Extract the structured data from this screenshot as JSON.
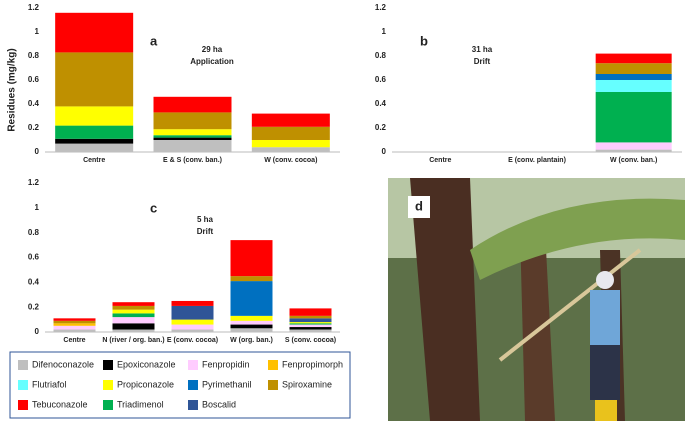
{
  "chart_data": [
    {
      "type": "bar",
      "stacked": true,
      "letter": "a",
      "annotations": [
        "29 ha",
        "Application"
      ],
      "ylabel": "Residues (mg/kg)",
      "categories": [
        "Centre",
        "E & S (conv. ban.)",
        "W (conv. cocoa)"
      ],
      "ylim": [
        0,
        1.2
      ],
      "yticks": [
        0,
        0.2,
        0.4,
        0.6,
        0.8,
        1,
        1.2
      ],
      "series": [
        {
          "name": "Difenoconazole",
          "color": "#bfbfbf",
          "values": [
            0.07,
            0.1,
            0.04
          ]
        },
        {
          "name": "Epoxiconazole",
          "color": "#000000",
          "values": [
            0.04,
            0.02,
            0
          ]
        },
        {
          "name": "Fenpropidin",
          "color": "#ffccff",
          "values": [
            0,
            0,
            0
          ]
        },
        {
          "name": "Fenpropimorph",
          "color": "#ffc000",
          "values": [
            0,
            0,
            0
          ]
        },
        {
          "name": "Triadimenol",
          "color": "#00b050",
          "values": [
            0.11,
            0.02,
            0
          ]
        },
        {
          "name": "Flutriafol",
          "color": "#66ffff",
          "values": [
            0,
            0,
            0
          ]
        },
        {
          "name": "Propiconazole",
          "color": "#ffff00",
          "values": [
            0.16,
            0.05,
            0.06
          ]
        },
        {
          "name": "Pyrimethanil",
          "color": "#0070c0",
          "values": [
            0,
            0,
            0
          ]
        },
        {
          "name": "Boscalid",
          "color": "#2f5597",
          "values": [
            0,
            0,
            0
          ]
        },
        {
          "name": "Spiroxamine",
          "color": "#bf9000",
          "values": [
            0.45,
            0.14,
            0.11
          ]
        },
        {
          "name": "Tebuconazole",
          "color": "#ff0000",
          "values": [
            0.33,
            0.13,
            0.11
          ]
        }
      ]
    },
    {
      "type": "bar",
      "stacked": true,
      "letter": "b",
      "annotations": [
        "31 ha",
        "Drift"
      ],
      "categories": [
        "Centre",
        "E (conv. plantain)",
        "W (conv. ban.)"
      ],
      "ylim": [
        0,
        1.2
      ],
      "yticks": [
        0,
        0.2,
        0.4,
        0.6,
        0.8,
        1,
        1.2
      ],
      "series": [
        {
          "values": [
            0,
            0,
            0.02
          ]
        },
        {
          "values": [
            0,
            0,
            0
          ]
        },
        {
          "values": [
            0,
            0,
            0.06
          ]
        },
        {
          "values": [
            0,
            0,
            0
          ]
        },
        {
          "values": [
            0,
            0,
            0.42
          ]
        },
        {
          "values": [
            0,
            0,
            0.1
          ]
        },
        {
          "values": [
            0,
            0,
            0
          ]
        },
        {
          "values": [
            0,
            0,
            0.05
          ]
        },
        {
          "values": [
            0,
            0,
            0
          ]
        },
        {
          "values": [
            0,
            0,
            0.09
          ]
        },
        {
          "values": [
            0,
            0,
            0.08
          ]
        }
      ]
    },
    {
      "type": "bar",
      "stacked": true,
      "letter": "c",
      "annotations": [
        "5 ha",
        "Drift"
      ],
      "categories": [
        "Centre",
        "N (river / org. ban.)",
        "E (conv. cocoa)",
        "W (org. ban.)",
        "S (conv. cocoa)"
      ],
      "ylim": [
        0,
        1.2
      ],
      "yticks": [
        0,
        0.2,
        0.4,
        0.6,
        0.8,
        1,
        1.2
      ],
      "series": [
        {
          "values": [
            0.02,
            0.02,
            0.02,
            0.03,
            0.02
          ]
        },
        {
          "values": [
            0,
            0.05,
            0,
            0.03,
            0.02
          ]
        },
        {
          "values": [
            0.03,
            0.05,
            0.04,
            0.03,
            0.02
          ]
        },
        {
          "values": [
            0.02,
            0,
            0,
            0,
            0
          ]
        },
        {
          "values": [
            0,
            0.03,
            0,
            0,
            0.01
          ]
        },
        {
          "values": [
            0,
            0,
            0,
            0,
            0
          ]
        },
        {
          "values": [
            0,
            0.03,
            0.04,
            0.04,
            0.01
          ]
        },
        {
          "values": [
            0,
            0,
            0,
            0.28,
            0
          ]
        },
        {
          "values": [
            0,
            0,
            0.11,
            0,
            0.03
          ]
        },
        {
          "values": [
            0.02,
            0.03,
            0,
            0.04,
            0.02
          ]
        },
        {
          "values": [
            0.02,
            0.03,
            0.04,
            0.29,
            0.06
          ]
        }
      ]
    }
  ],
  "photo": {
    "letter": "d"
  }
}
